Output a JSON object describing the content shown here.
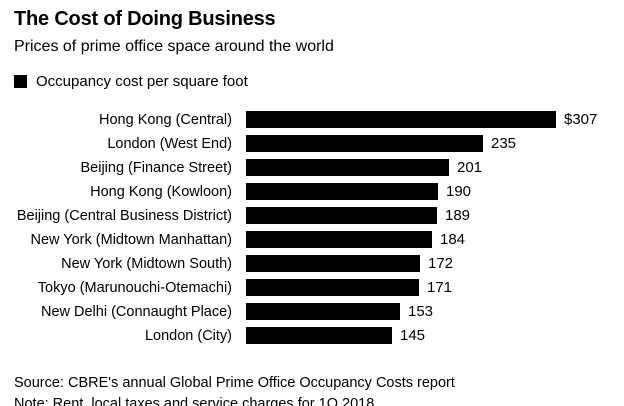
{
  "header": {
    "title": "The Cost of Doing Business",
    "subtitle": "Prices of prime office space around the world"
  },
  "legend": {
    "label": "Occupancy cost per square foot",
    "swatch_color": "#000000"
  },
  "footer": {
    "source": "Source: CBRE's annual Global Prime Office Occupancy Costs report",
    "note": "Note: Rent, local taxes and service charges for 1Q 2018"
  },
  "colors": {
    "bar": "#000000",
    "text": "#000000",
    "background": "#ffffff"
  },
  "chart_data": {
    "type": "bar",
    "orientation": "horizontal",
    "title": "The Cost of Doing Business",
    "subtitle": "Prices of prime office space around the world",
    "legend_entries": [
      "Occupancy cost per square foot"
    ],
    "legend_position": "top-left",
    "grid": false,
    "axis_ticks_visible": false,
    "xlabel": "",
    "ylabel": "",
    "xlim": [
      0,
      310
    ],
    "unit": "USD per square foot",
    "categories": [
      "Hong Kong (Central)",
      "London (West End)",
      "Beijing (Finance Street)",
      "Hong Kong (Kowloon)",
      "Beijing (Central Business District)",
      "New York (Midtown Manhattan)",
      "New York (Midtown South)",
      "Tokyo (Marunouchi-Otemachi)",
      "New Delhi (Connaught Place)",
      "London (City)"
    ],
    "values": [
      307,
      235,
      201,
      190,
      189,
      184,
      172,
      171,
      153,
      145
    ],
    "value_labels": [
      "$307",
      "235",
      "201",
      "190",
      "189",
      "184",
      "172",
      "171",
      "153",
      "145"
    ]
  }
}
